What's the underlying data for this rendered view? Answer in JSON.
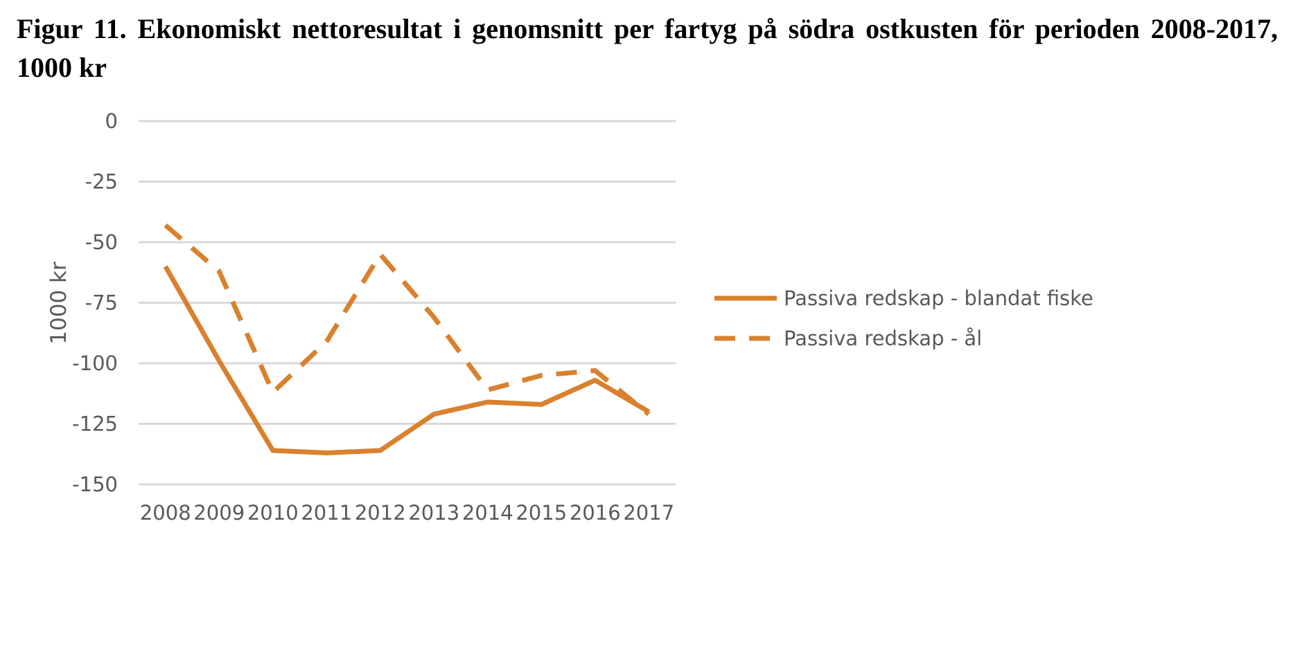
{
  "caption": "Figur 11. Ekonomiskt nettoresultat i genomsnitt per fartyg på södra ostkusten för perioden 2008-2017, 1000 kr",
  "chart_data": {
    "type": "line",
    "title": "",
    "xlabel": "",
    "ylabel": "1000 kr",
    "ylim": [
      -150,
      0
    ],
    "yticks": [
      0,
      -25,
      -50,
      -75,
      -100,
      -125,
      -150
    ],
    "x": [
      "2008",
      "2009",
      "2010",
      "2011",
      "2012",
      "2013",
      "2014",
      "2015",
      "2016",
      "2017"
    ],
    "grid": "horizontal",
    "legend_position": "right",
    "series": [
      {
        "name": "Passiva redskap - blandat fiske",
        "style": "solid",
        "color": "#D9812E",
        "values": [
          -60,
          -99,
          -136,
          -137,
          -136,
          -121,
          -116,
          -117,
          -107,
          -120
        ]
      },
      {
        "name": "Passiva redskap - ål",
        "style": "dashed",
        "color": "#D9812E",
        "values": [
          -43,
          -62,
          -112,
          -91,
          -55,
          -81,
          -111,
          -105,
          -103,
          -121
        ]
      }
    ]
  }
}
